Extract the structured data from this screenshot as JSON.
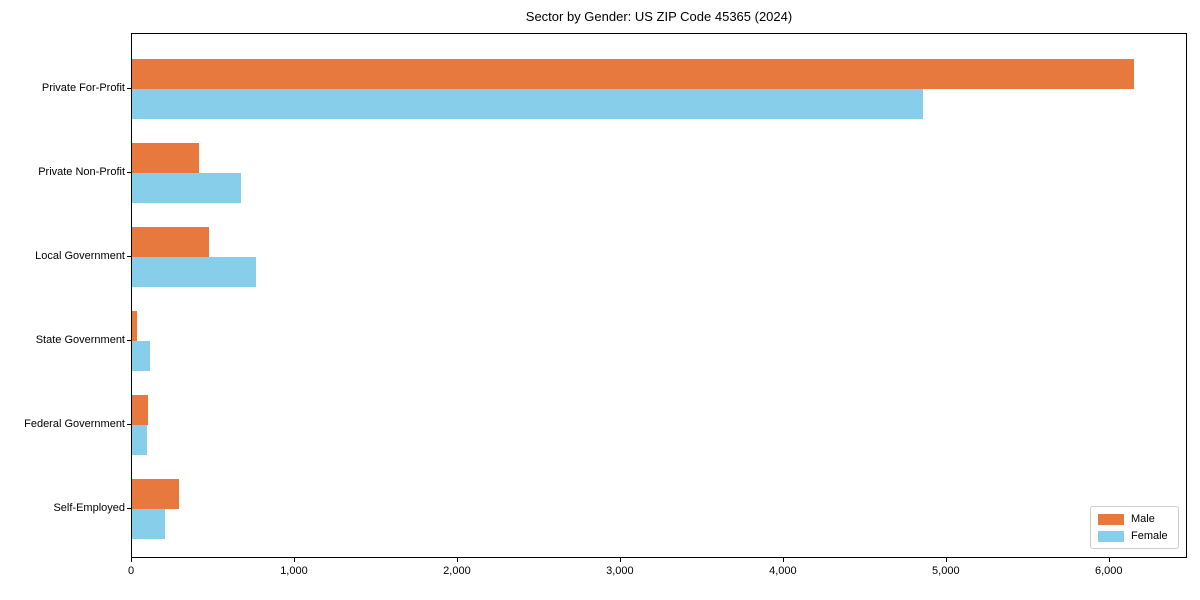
{
  "chart_data": {
    "type": "bar",
    "orientation": "horizontal",
    "title": "Sector by Gender: US ZIP Code 45365 (2024)",
    "categories": [
      "Private For-Profit",
      "Private Non-Profit",
      "Local Government",
      "State Government",
      "Federal Government",
      "Self-Employed"
    ],
    "series": [
      {
        "name": "Male",
        "color": "#e8793e",
        "values": [
          6160,
          410,
          475,
          30,
          100,
          290
        ]
      },
      {
        "name": "Female",
        "color": "#87ceeb",
        "values": [
          4860,
          670,
          760,
          110,
          90,
          200
        ]
      }
    ],
    "xlabel": "",
    "ylabel": "",
    "xlim": [
      0,
      6480
    ],
    "xticks": [
      0,
      1000,
      2000,
      3000,
      4000,
      5000,
      6000
    ],
    "xtick_labels": [
      "0",
      "1,000",
      "2,000",
      "3,000",
      "4,000",
      "5,000",
      "6,000"
    ],
    "grid": false,
    "legend": {
      "position": "lower right",
      "entries": [
        "Male",
        "Female"
      ]
    }
  }
}
